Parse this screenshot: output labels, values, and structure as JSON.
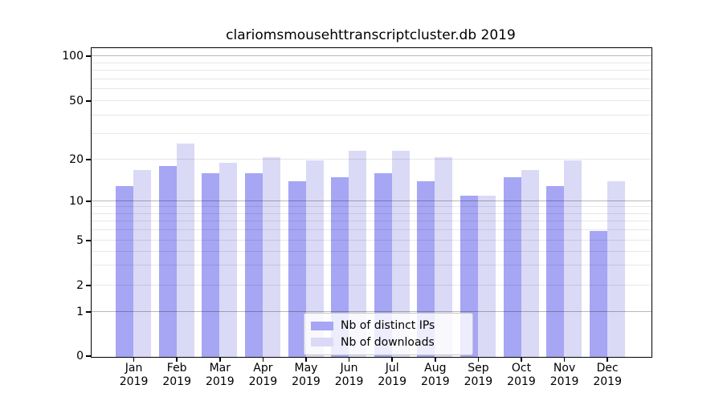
{
  "chart_data": {
    "type": "bar",
    "title": "clariomsmousehttranscriptcluster.db 2019",
    "categories": [
      "Jan",
      "Feb",
      "Mar",
      "Apr",
      "May",
      "Jun",
      "Jul",
      "Aug",
      "Sep",
      "Oct",
      "Nov",
      "Dec"
    ],
    "x_tick_second_line": "2019",
    "series": [
      {
        "name": "Nb of distinct IPs",
        "color": "#a6a6f4",
        "values": [
          13,
          18,
          16,
          16,
          14,
          15,
          16,
          14,
          11,
          15,
          13,
          6
        ]
      },
      {
        "name": "Nb of downloads",
        "color": "#dadaf6",
        "values": [
          17,
          26,
          19,
          21,
          20,
          23,
          23,
          21,
          11,
          17,
          20,
          14
        ]
      }
    ],
    "yticks": [
      0,
      1,
      2,
      5,
      10,
      20,
      50,
      100
    ],
    "ylim": [
      0,
      100
    ],
    "yscale": "log-like (symlog with 0 baseline)",
    "grid": "horizontal, minor log gridlines",
    "legend_position": "lower center"
  },
  "colors": {
    "bar_ips": "#a6a6f4",
    "bar_downloads": "#dadaf6",
    "grid_decade": "rgba(0,0,0,0.28)",
    "grid_minor": "rgba(0,0,0,0.095)",
    "axis": "#000000",
    "legend_border": "#c9c9c9"
  }
}
